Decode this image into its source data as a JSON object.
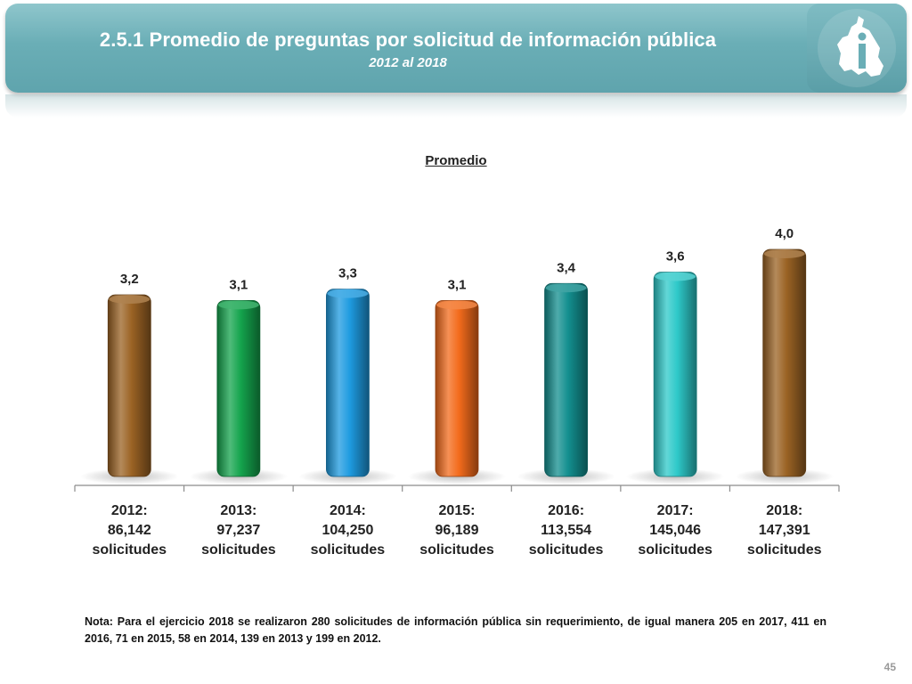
{
  "header": {
    "title": "2.5.1 Promedio de preguntas por solicitud de información pública",
    "subtitle": "2012 al 2018"
  },
  "chart_data": {
    "type": "bar",
    "title": "Promedio",
    "categories": [
      [
        "2012:",
        "86,142",
        "solicitudes"
      ],
      [
        "2013:",
        "97,237",
        "solicitudes"
      ],
      [
        "2014:",
        "104,250",
        "solicitudes"
      ],
      [
        "2015:",
        "96,189",
        "solicitudes"
      ],
      [
        "2016:",
        "113,554",
        "solicitudes"
      ],
      [
        "2017:",
        "145,046",
        "solicitudes"
      ],
      [
        "2018:",
        "147,391",
        "solicitudes"
      ]
    ],
    "values": [
      3.2,
      3.1,
      3.3,
      3.1,
      3.4,
      3.6,
      4.0
    ],
    "value_labels": [
      "3,2",
      "3,1",
      "3,3",
      "3,1",
      "3,4",
      "3,6",
      "4,0"
    ],
    "colors": [
      "#9b6324",
      "#14a44d",
      "#1e9be0",
      "#f36b1c",
      "#138f8f",
      "#2ec9c9",
      "#9b6324"
    ],
    "ylim": [
      0,
      4.0
    ],
    "xlabel": "",
    "ylabel": "",
    "legend": "none",
    "grid": false
  },
  "note": "Nota: Para el ejercicio 2018 se realizaron 280 solicitudes de información pública sin requerimiento, de igual manera 205 en 2017, 411 en 2016, 71 en 2015, 58 en 2014, 139 en 2013 y 199 en 2012.",
  "page_number": "45"
}
